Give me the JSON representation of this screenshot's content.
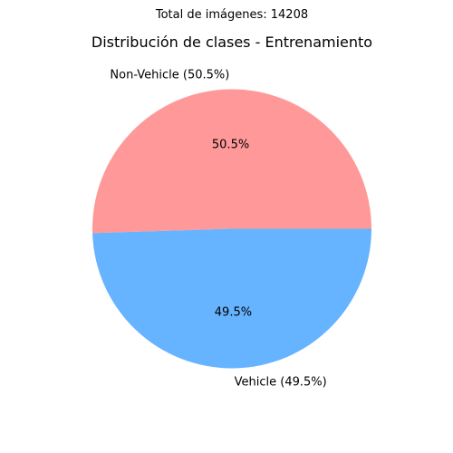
{
  "suptitle": "Total de imágenes: 14208",
  "chart_data": {
    "type": "pie",
    "title": "Distribución de clases - Entrenamiento",
    "slices": [
      {
        "label": "Non-Vehicle (50.5%)",
        "value": 50.5,
        "pct_label": "50.5%",
        "color": "#ff9999"
      },
      {
        "label": "Vehicle (49.5%)",
        "value": 49.5,
        "pct_label": "49.5%",
        "color": "#66b3ff"
      }
    ],
    "start_angle_deg": 0,
    "direction": "counterclockwise"
  }
}
